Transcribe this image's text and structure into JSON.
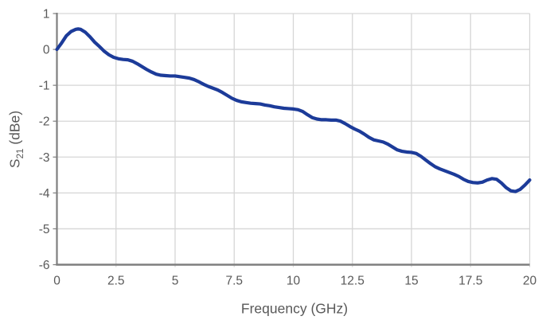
{
  "chart_data": {
    "type": "line",
    "title": "",
    "xlabel": "Frequency (GHz)",
    "ylabel": "S21 (dBe)",
    "ylabel_parts": {
      "base": "S",
      "sub": "21",
      "rest": " (dBe)"
    },
    "xlim": [
      0,
      20
    ],
    "ylim": [
      -6,
      1
    ],
    "x_ticks": [
      0,
      2.5,
      5,
      7.5,
      10,
      12.5,
      15,
      17.5,
      20
    ],
    "x_tick_labels": [
      "0",
      "2.5",
      "5",
      "7.5",
      "10",
      "12.5",
      "15",
      "17.5",
      "20"
    ],
    "y_ticks": [
      1,
      0,
      -1,
      -2,
      -3,
      -4,
      -5,
      -6
    ],
    "y_tick_labels": [
      "1",
      "0",
      "-1",
      "-2",
      "-3",
      "-4",
      "-5",
      "-6"
    ],
    "grid": true,
    "legend": "none",
    "series": [
      {
        "name": "S21",
        "color": "#1c3b99",
        "x": [
          0,
          0.2,
          0.4,
          0.6,
          0.8,
          0.9,
          1.0,
          1.2,
          1.4,
          1.6,
          1.8,
          2.0,
          2.2,
          2.4,
          2.6,
          2.8,
          3.0,
          3.2,
          3.4,
          3.6,
          3.8,
          4.0,
          4.2,
          4.4,
          4.6,
          4.8,
          5.0,
          5.2,
          5.4,
          5.6,
          5.8,
          6.0,
          6.2,
          6.4,
          6.6,
          6.8,
          7.0,
          7.2,
          7.4,
          7.6,
          7.8,
          8.0,
          8.2,
          8.4,
          8.6,
          8.8,
          9.0,
          9.2,
          9.4,
          9.6,
          9.8,
          10.0,
          10.2,
          10.4,
          10.6,
          10.8,
          11.0,
          11.2,
          11.4,
          11.6,
          11.8,
          12.0,
          12.2,
          12.4,
          12.6,
          12.8,
          13.0,
          13.2,
          13.4,
          13.6,
          13.8,
          14.0,
          14.2,
          14.4,
          14.6,
          14.8,
          15.0,
          15.2,
          15.4,
          15.6,
          15.8,
          16.0,
          16.2,
          16.4,
          16.6,
          16.8,
          17.0,
          17.2,
          17.4,
          17.6,
          17.8,
          18.0,
          18.2,
          18.4,
          18.6,
          18.8,
          19.0,
          19.2,
          19.4,
          19.6,
          19.8,
          20.0
        ],
        "y": [
          0.0,
          0.18,
          0.38,
          0.5,
          0.56,
          0.57,
          0.56,
          0.48,
          0.35,
          0.2,
          0.08,
          -0.05,
          -0.15,
          -0.22,
          -0.26,
          -0.28,
          -0.29,
          -0.33,
          -0.4,
          -0.48,
          -0.56,
          -0.63,
          -0.69,
          -0.72,
          -0.73,
          -0.74,
          -0.74,
          -0.76,
          -0.78,
          -0.8,
          -0.84,
          -0.9,
          -0.97,
          -1.03,
          -1.08,
          -1.13,
          -1.2,
          -1.28,
          -1.36,
          -1.42,
          -1.46,
          -1.48,
          -1.5,
          -1.51,
          -1.52,
          -1.55,
          -1.57,
          -1.6,
          -1.62,
          -1.64,
          -1.65,
          -1.66,
          -1.68,
          -1.73,
          -1.82,
          -1.9,
          -1.94,
          -1.96,
          -1.96,
          -1.97,
          -1.97,
          -2.0,
          -2.07,
          -2.15,
          -2.22,
          -2.28,
          -2.36,
          -2.45,
          -2.52,
          -2.55,
          -2.58,
          -2.64,
          -2.72,
          -2.8,
          -2.84,
          -2.86,
          -2.87,
          -2.9,
          -2.98,
          -3.08,
          -3.18,
          -3.27,
          -3.33,
          -3.38,
          -3.43,
          -3.48,
          -3.54,
          -3.62,
          -3.68,
          -3.71,
          -3.72,
          -3.7,
          -3.64,
          -3.6,
          -3.62,
          -3.72,
          -3.85,
          -3.94,
          -3.96,
          -3.9,
          -3.78,
          -3.64
        ]
      }
    ]
  },
  "colors": {
    "background": "#ffffff",
    "grid": "#d6d6d6",
    "axis": "#7f7f7f",
    "tick_label": "#595959",
    "axis_title": "#595959",
    "line": "#1c3b99"
  }
}
